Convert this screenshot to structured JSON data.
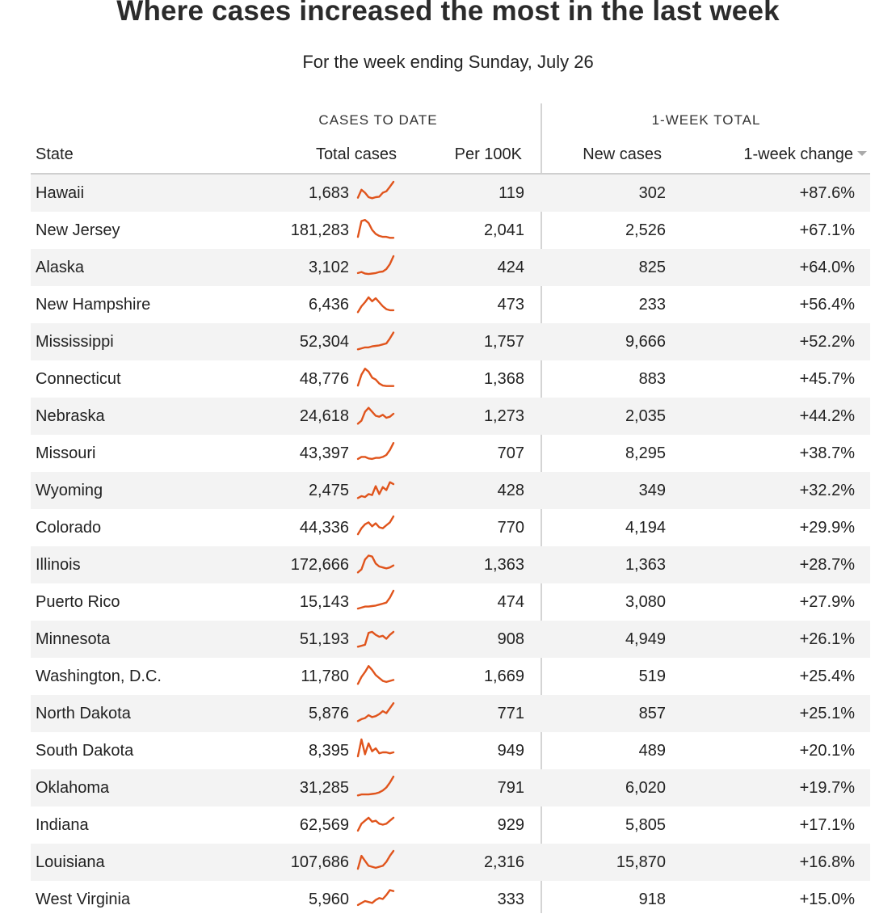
{
  "title": "Where cases increased the most in the last week",
  "subtitle": "For the week ending Sunday, July 26",
  "colors": {
    "sparkline": "#e0541c"
  },
  "groups": {
    "cases_to_date": "CASES TO DATE",
    "week_total": "1-WEEK TOTAL"
  },
  "columns": {
    "state": "State",
    "total_cases": "Total cases",
    "per_100k": "Per 100K",
    "new_cases": "New cases",
    "week_change": "1-week change"
  },
  "sort_indicator": "chevron-down-icon",
  "rows": [
    {
      "state": "Hawaii",
      "total": "1,683",
      "per100k": "119",
      "new": "302",
      "change": "+87.6%",
      "trend": [
        12,
        28,
        22,
        13,
        11,
        13,
        14,
        22,
        25,
        34,
        44
      ]
    },
    {
      "state": "New Jersey",
      "total": "181,283",
      "per100k": "2,041",
      "new": "2,526",
      "change": "+67.1%",
      "trend": [
        8,
        40,
        42,
        36,
        22,
        14,
        10,
        8,
        8,
        6,
        6
      ]
    },
    {
      "state": "Alaska",
      "total": "3,102",
      "per100k": "424",
      "new": "825",
      "change": "+64.0%",
      "trend": [
        10,
        12,
        9,
        8,
        9,
        10,
        12,
        13,
        18,
        28,
        44
      ]
    },
    {
      "state": "New Hampshire",
      "total": "6,436",
      "per100k": "473",
      "new": "233",
      "change": "+56.4%",
      "trend": [
        6,
        18,
        26,
        36,
        28,
        34,
        26,
        18,
        12,
        10,
        10
      ]
    },
    {
      "state": "Mississippi",
      "total": "52,304",
      "per100k": "1,757",
      "new": "9,666",
      "change": "+52.2%",
      "trend": [
        6,
        8,
        10,
        10,
        12,
        13,
        14,
        16,
        18,
        28,
        40
      ]
    },
    {
      "state": "Connecticut",
      "total": "48,776",
      "per100k": "1,368",
      "new": "883",
      "change": "+45.7%",
      "trend": [
        8,
        30,
        42,
        36,
        24,
        20,
        12,
        8,
        7,
        7,
        7
      ]
    },
    {
      "state": "Nebraska",
      "total": "24,618",
      "per100k": "1,273",
      "new": "2,035",
      "change": "+44.2%",
      "trend": [
        6,
        12,
        30,
        38,
        30,
        22,
        20,
        24,
        18,
        20,
        26
      ]
    },
    {
      "state": "Missouri",
      "total": "43,397",
      "per100k": "707",
      "new": "8,295",
      "change": "+38.7%",
      "trend": [
        10,
        14,
        14,
        11,
        10,
        12,
        12,
        14,
        18,
        28,
        42
      ]
    },
    {
      "state": "Wyoming",
      "total": "2,475",
      "per100k": "428",
      "new": "349",
      "change": "+32.2%",
      "trend": [
        6,
        10,
        8,
        14,
        12,
        30,
        14,
        28,
        22,
        38,
        34
      ]
    },
    {
      "state": "Colorado",
      "total": "44,336",
      "per100k": "770",
      "new": "4,194",
      "change": "+29.9%",
      "trend": [
        8,
        20,
        28,
        32,
        24,
        30,
        22,
        20,
        26,
        32,
        44
      ]
    },
    {
      "state": "Illinois",
      "total": "172,666",
      "per100k": "1,363",
      "new": "1,363",
      "change": "+28.7%",
      "trend": [
        6,
        12,
        32,
        40,
        38,
        24,
        18,
        16,
        14,
        16,
        20
      ]
    },
    {
      "state": "Puerto Rico",
      "total": "15,143",
      "per100k": "474",
      "new": "3,080",
      "change": "+27.9%",
      "trend": [
        8,
        10,
        12,
        12,
        13,
        14,
        16,
        18,
        20,
        30,
        44
      ]
    },
    {
      "state": "Minnesota",
      "total": "51,193",
      "per100k": "908",
      "new": "4,949",
      "change": "+26.1%",
      "trend": [
        6,
        8,
        10,
        34,
        36,
        30,
        26,
        28,
        22,
        30,
        36
      ]
    },
    {
      "state": "Washington, D.C.",
      "total": "11,780",
      "per100k": "1,669",
      "new": "519",
      "change": "+25.4%",
      "trend": [
        6,
        20,
        30,
        42,
        34,
        24,
        18,
        12,
        10,
        12,
        14
      ]
    },
    {
      "state": "North Dakota",
      "total": "5,876",
      "per100k": "771",
      "new": "857",
      "change": "+25.1%",
      "trend": [
        6,
        10,
        12,
        18,
        14,
        16,
        20,
        26,
        22,
        32,
        42
      ]
    },
    {
      "state": "South Dakota",
      "total": "8,395",
      "per100k": "949",
      "new": "489",
      "change": "+20.1%",
      "trend": [
        10,
        44,
        14,
        36,
        20,
        26,
        16,
        18,
        18,
        16,
        18
      ]
    },
    {
      "state": "Oklahoma",
      "total": "31,285",
      "per100k": "791",
      "new": "6,020",
      "change": "+19.7%",
      "trend": [
        6,
        8,
        8,
        8,
        9,
        10,
        12,
        16,
        22,
        32,
        44
      ]
    },
    {
      "state": "Indiana",
      "total": "62,569",
      "per100k": "929",
      "new": "5,805",
      "change": "+17.1%",
      "trend": [
        10,
        24,
        30,
        36,
        28,
        30,
        24,
        22,
        24,
        30,
        36
      ]
    },
    {
      "state": "Louisiana",
      "total": "107,686",
      "per100k": "2,316",
      "new": "15,870",
      "change": "+16.8%",
      "trend": [
        8,
        34,
        24,
        14,
        12,
        10,
        12,
        14,
        22,
        34,
        44
      ]
    },
    {
      "state": "West Virginia",
      "total": "5,960",
      "per100k": "333",
      "new": "918",
      "change": "+15.0%",
      "trend": [
        10,
        14,
        18,
        16,
        14,
        20,
        24,
        22,
        30,
        40,
        38
      ]
    }
  ]
}
